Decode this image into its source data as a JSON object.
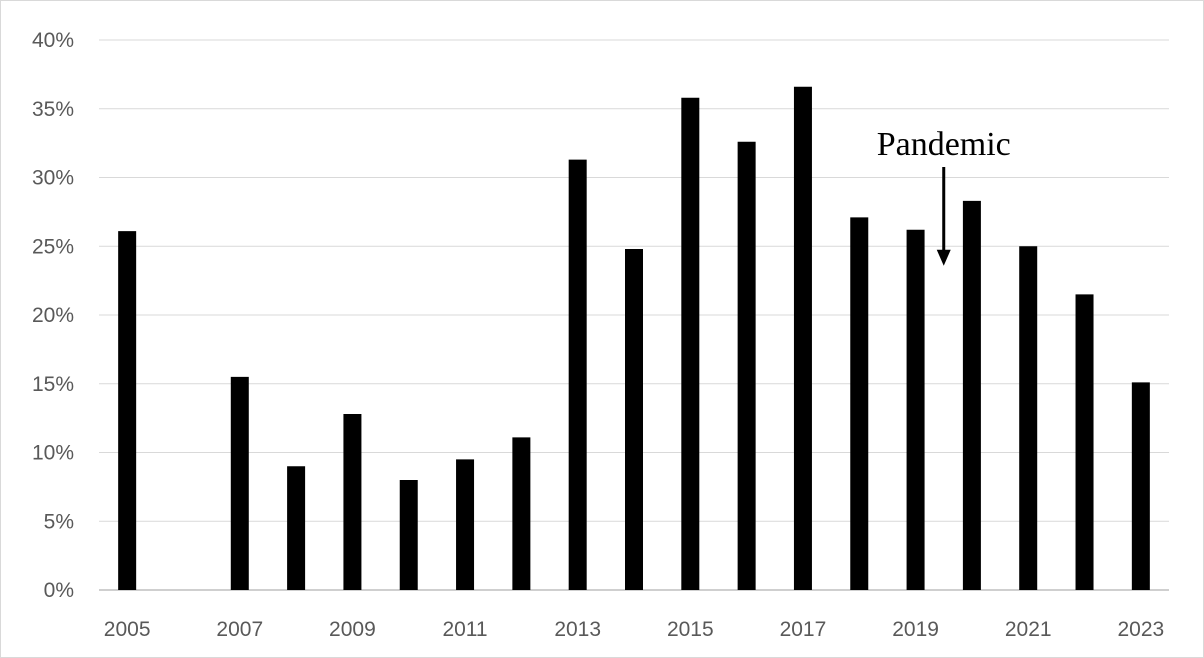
{
  "chart_data": {
    "type": "bar",
    "title": "",
    "xlabel": "",
    "ylabel": "",
    "categories": [
      "2005",
      "2006",
      "2007",
      "2008",
      "2009",
      "2010",
      "2011",
      "2012",
      "2013",
      "2014",
      "2015",
      "2016",
      "2017",
      "2018",
      "2019",
      "2020",
      "2021",
      "2022",
      "2023"
    ],
    "x_tick_labels": [
      "2005",
      "2007",
      "2009",
      "2011",
      "2013",
      "2015",
      "2017",
      "2019",
      "2021",
      "2023"
    ],
    "values": [
      26.1,
      0,
      15.5,
      9.0,
      12.8,
      8.0,
      9.5,
      11.1,
      31.3,
      24.8,
      35.8,
      32.6,
      36.6,
      27.1,
      26.2,
      28.3,
      25.0,
      21.5,
      15.1
    ],
    "ylim": [
      0,
      40
    ],
    "y_ticks": [
      0,
      5,
      10,
      15,
      20,
      25,
      30,
      35,
      40
    ],
    "y_tick_format": "percent",
    "grid": true,
    "bar_color": "#000000",
    "grid_color": "#d9d9d9",
    "annotation": {
      "text": "Pandemic",
      "target_category": "2020",
      "arrow_tip_value": 23
    }
  }
}
